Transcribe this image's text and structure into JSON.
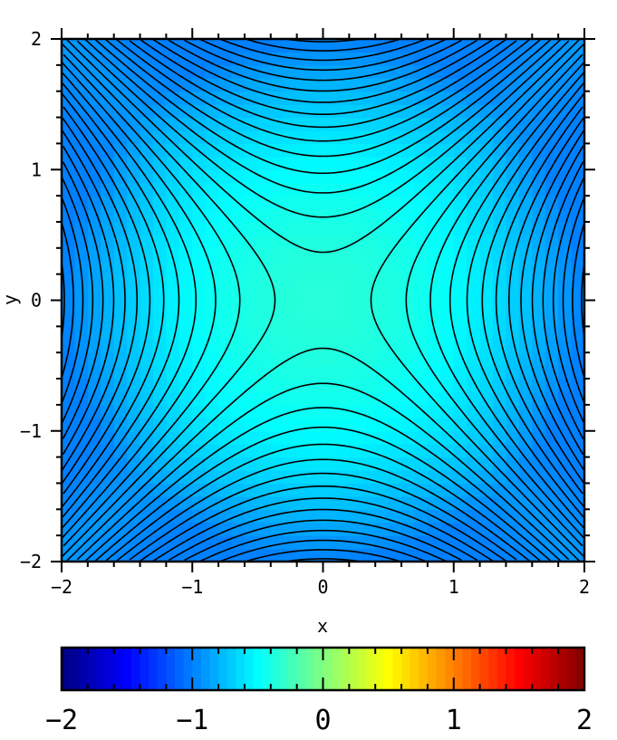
{
  "chart_data": {
    "type": "contour",
    "title": "",
    "xlabel": "x",
    "ylabel": "y",
    "xlim": [
      -2,
      2
    ],
    "ylim": [
      -2,
      2
    ],
    "xticks": [
      "-2",
      "-1",
      "0",
      "1",
      "2"
    ],
    "yticks": [
      "-2",
      "-1",
      "0",
      "1",
      "2"
    ],
    "contour_function": "x^2 - y^2",
    "contour_levels_step": 0.27,
    "contour_levels_offset": 0.135,
    "contour_levels_range": [
      -4,
      4
    ],
    "line_color": "#000000",
    "colormap": "jet",
    "colorbar": {
      "range": [
        -2,
        2
      ],
      "ticks": [
        "-2",
        "-1",
        "0",
        "1",
        "2"
      ],
      "placement": "bottom"
    }
  }
}
